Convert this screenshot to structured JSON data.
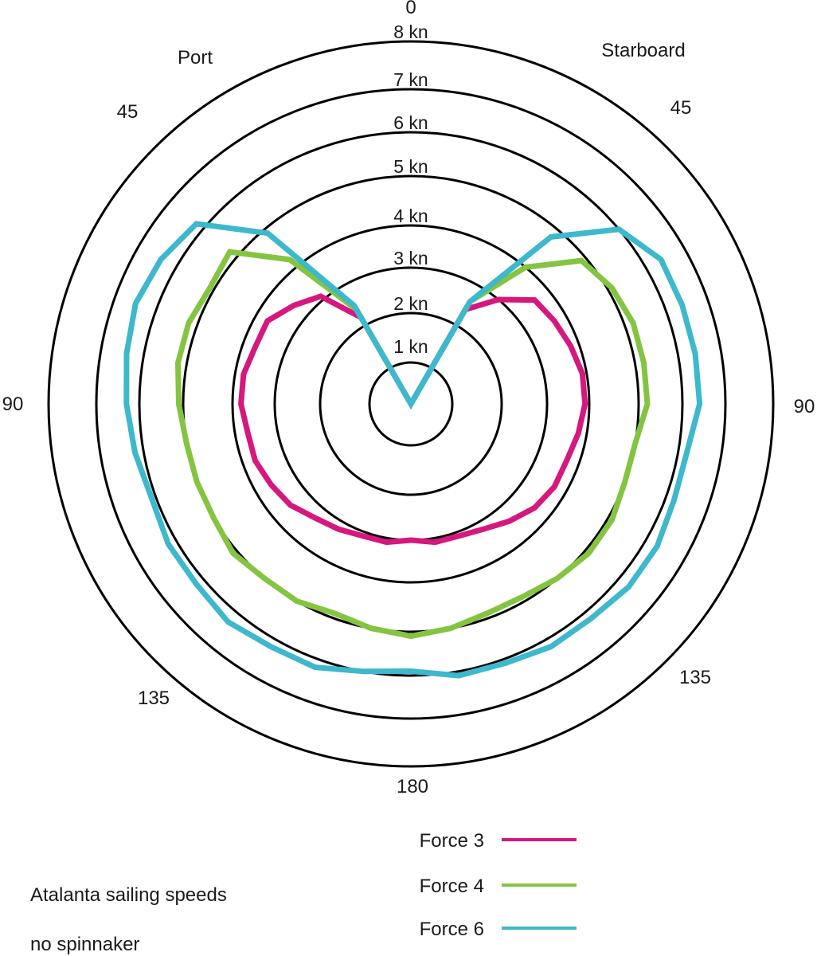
{
  "chart_data": {
    "type": "polar-line",
    "title": "Atalanta sailing speeds",
    "subtitle": "no spinnaker",
    "side_labels": {
      "port": "Port",
      "starboard": "Starboard"
    },
    "angle_labels": [
      {
        "angle": 0,
        "text": "0",
        "side": "center"
      },
      {
        "angle": 45,
        "text": "45",
        "side": "port"
      },
      {
        "angle": 45,
        "text": "45",
        "side": "starboard"
      },
      {
        "angle": 90,
        "text": "90",
        "side": "port"
      },
      {
        "angle": 90,
        "text": "90",
        "side": "starboard"
      },
      {
        "angle": 135,
        "text": "135",
        "side": "port"
      },
      {
        "angle": 135,
        "text": "135",
        "side": "starboard"
      },
      {
        "angle": 180,
        "text": "180",
        "side": "center"
      }
    ],
    "radial_ticks": [
      1,
      2,
      3,
      4,
      5,
      6,
      7,
      8
    ],
    "radial_tick_labels": [
      "1 kn",
      "2 kn",
      "3 kn",
      "4 kn",
      "5 kn",
      "6 kn",
      "7 kn",
      "8 kn"
    ],
    "radial_unit": "kn",
    "rlim": [
      0,
      8
    ],
    "legend_position": "bottom-right",
    "angles": [
      0,
      30,
      40,
      50,
      60,
      70,
      80,
      90,
      100,
      110,
      120,
      130,
      140,
      150,
      160,
      170,
      180
    ],
    "series": [
      {
        "name": "Force 3",
        "color": "#d6187e",
        "starboard": [
          0,
          2.4,
          3.0,
          3.6,
          3.7,
          3.8,
          3.9,
          3.9,
          3.8,
          3.7,
          3.7,
          3.6,
          3.4,
          3.2,
          3.1,
          3.1,
          3.0
        ],
        "port": [
          0,
          2.2,
          3.1,
          3.4,
          3.7,
          3.7,
          3.8,
          3.8,
          3.7,
          3.7,
          3.6,
          3.5,
          3.3,
          3.2,
          3.1,
          3.1,
          3.0
        ]
      },
      {
        "name": "Force 4",
        "color": "#84c441",
        "starboard": [
          0,
          2.6,
          4.0,
          4.9,
          5.1,
          5.2,
          5.2,
          5.2,
          5.0,
          5.0,
          5.1,
          5.1,
          5.0,
          4.9,
          4.9,
          5.0,
          5.1
        ],
        "port": [
          0,
          2.4,
          4.2,
          5.2,
          5.1,
          5.2,
          5.2,
          5.1,
          5.0,
          5.0,
          5.0,
          5.1,
          5.0,
          5.0,
          4.9,
          5.0,
          5.1
        ]
      },
      {
        "name": "Force 6",
        "color": "#3db8cc",
        "starboard": [
          0,
          2.6,
          4.8,
          6.0,
          6.4,
          6.4,
          6.4,
          6.4,
          6.2,
          6.2,
          6.3,
          6.3,
          6.2,
          6.2,
          6.1,
          6.1,
          5.9
        ],
        "port": [
          0,
          2.5,
          4.9,
          6.2,
          6.4,
          6.5,
          6.4,
          6.3,
          6.2,
          6.1,
          6.2,
          6.2,
          6.3,
          6.2,
          6.2,
          6.0,
          5.9
        ]
      }
    ]
  }
}
